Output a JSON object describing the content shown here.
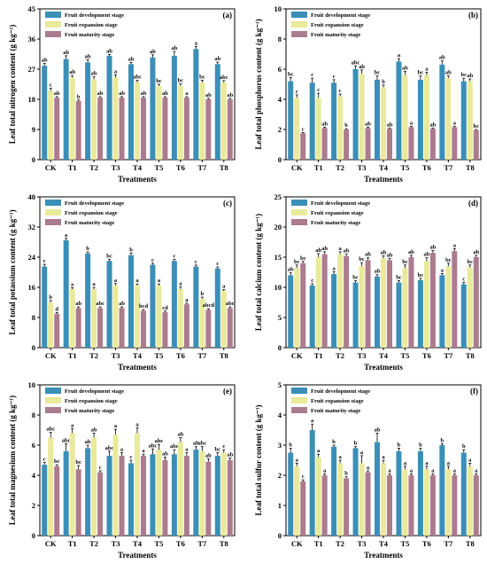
{
  "figure": {
    "treatments_title": "Treatments",
    "legend_labels": [
      "Fruit development stage",
      "Fruit expansion stage",
      "Fruit maturity stage"
    ],
    "colors": {
      "development": "#3a8fb7",
      "expansion": "#e9ea9a",
      "maturity": "#ad7b8e"
    }
  },
  "chart_data": [
    {
      "panel": "(a)",
      "type": "bar",
      "ylabel": "Leaf total nitrogen content (g kg⁻¹)",
      "xlabel": "Treatments",
      "ylim": [
        0,
        45
      ],
      "yticks": [
        0,
        9,
        18,
        27,
        36,
        45
      ],
      "categories": [
        "CK",
        "T1",
        "T2",
        "T3",
        "T4",
        "T5",
        "T6",
        "T7",
        "T8"
      ],
      "series": [
        {
          "name": "Fruit development stage",
          "values": [
            28,
            30,
            29,
            31,
            28.5,
            30.5,
            31,
            33,
            28.5
          ],
          "errors": [
            0.7,
            1.0,
            0.8,
            0.4,
            0.5,
            0.8,
            1.3,
            0.8,
            0.6
          ],
          "labels": [
            "ab",
            "ab",
            "ab",
            "ab",
            "ab",
            "ab",
            "ab",
            "a",
            "ab"
          ]
        },
        {
          "name": "Fruit expansion stage",
          "values": [
            20.5,
            24.5,
            24,
            24.5,
            23,
            22,
            22,
            23,
            23
          ],
          "errors": [
            0.8,
            0.6,
            0.7,
            0.8,
            0.7,
            0.5,
            0.6,
            0.7,
            0.6
          ],
          "labels": [
            "c",
            "ab",
            "ab",
            "a",
            "abc",
            "bc",
            "bc",
            "bc",
            "abc"
          ]
        },
        {
          "name": "Fruit maturity stage",
          "values": [
            18.5,
            17.5,
            18.5,
            18.5,
            18.5,
            18.5,
            18.5,
            18,
            18
          ],
          "errors": [
            0.3,
            0.3,
            0.3,
            0.3,
            0.3,
            0.3,
            0.3,
            0.3,
            0.3
          ],
          "labels": [
            "ab",
            "b",
            "ab",
            "ab",
            "ab",
            "ab",
            "a",
            "ab",
            "ab"
          ]
        }
      ]
    },
    {
      "panel": "(b)",
      "type": "bar",
      "ylabel": "Leaf total phosphorus content (g kg⁻¹)",
      "xlabel": "Treatments",
      "ylim": [
        0,
        10
      ],
      "yticks": [
        0,
        2,
        4,
        6,
        8,
        10
      ],
      "categories": [
        "CK",
        "T1",
        "T2",
        "T3",
        "T4",
        "T5",
        "T6",
        "T7",
        "T8"
      ],
      "series": [
        {
          "name": "Fruit development stage",
          "values": [
            5.2,
            5.1,
            5.1,
            6.0,
            5.3,
            6.5,
            5.3,
            6.3,
            5.2
          ],
          "errors": [
            0.25,
            0.3,
            0.2,
            0.2,
            0.25,
            0.2,
            0.25,
            0.25,
            0.2
          ],
          "labels": [
            "bc",
            "c",
            "c",
            "abc",
            "bc",
            "a",
            "bc",
            "ab",
            "bc"
          ]
        },
        {
          "name": "Fruit expansion stage",
          "values": [
            4.1,
            4.1,
            4.2,
            5.7,
            4.8,
            5.6,
            5.6,
            5.4,
            5.2
          ],
          "errors": [
            0.2,
            0.3,
            0.15,
            0.25,
            0.15,
            0.25,
            0.2,
            0.15,
            0.15
          ],
          "labels": [
            "c",
            "c",
            "c",
            "ab",
            "b",
            "ab",
            "a",
            "ab",
            "ab"
          ]
        },
        {
          "name": "Fruit maturity stage",
          "values": [
            1.75,
            2.1,
            2.0,
            2.1,
            2.05,
            2.15,
            2.05,
            2.15,
            1.95
          ],
          "errors": [
            0.05,
            0.05,
            0.05,
            0.05,
            0.05,
            0.05,
            0.05,
            0.05,
            0.05
          ],
          "labels": [
            "c",
            "ab",
            "b",
            "ab",
            "ab",
            "a",
            "ab",
            "a",
            "bc"
          ]
        }
      ]
    },
    {
      "panel": "(c)",
      "type": "bar",
      "ylabel": "Leaf total potassium content (g kg⁻¹)",
      "xlabel": "Treatments",
      "ylim": [
        0,
        40
      ],
      "yticks": [
        0,
        8,
        16,
        24,
        32,
        40
      ],
      "categories": [
        "CK",
        "T1",
        "T2",
        "T3",
        "T4",
        "T5",
        "T6",
        "T7",
        "T8"
      ],
      "series": [
        {
          "name": "Fruit development stage",
          "values": [
            21.5,
            28.5,
            25,
            23,
            24.5,
            22,
            23,
            21.5,
            21
          ],
          "errors": [
            0.6,
            0.5,
            0.4,
            0.4,
            0.6,
            0.4,
            0.4,
            0.4,
            0.4
          ],
          "labels": [
            "c",
            "a",
            "b",
            "bc",
            "b",
            "c",
            "c",
            "c",
            "c"
          ]
        },
        {
          "name": "Fruit expansion stage",
          "values": [
            12,
            15.5,
            15.5,
            16.5,
            16.5,
            16.5,
            15.5,
            13,
            15
          ],
          "errors": [
            0.5,
            0.4,
            0.5,
            0.5,
            0.4,
            0.4,
            0.6,
            0.4,
            0.4
          ],
          "labels": [
            "b",
            "a",
            "a",
            "a",
            "a",
            "a",
            "a",
            "b",
            "a"
          ]
        },
        {
          "name": "Fruit maturity stage",
          "values": [
            9,
            10.5,
            10.5,
            10.5,
            9.8,
            9.4,
            11.5,
            10,
            10.5
          ],
          "errors": [
            0.3,
            0.3,
            0.3,
            0.3,
            0.3,
            0.3,
            0.3,
            0.3,
            0.3
          ],
          "labels": [
            "d",
            "ab",
            "abc",
            "ab",
            "bcd",
            "cd",
            "a",
            "abcd",
            "abc"
          ]
        }
      ]
    },
    {
      "panel": "(d)",
      "type": "bar",
      "ylabel": "Leaf total calcium content (g kg⁻¹)",
      "xlabel": "Treatments",
      "ylim": [
        0,
        25
      ],
      "yticks": [
        0,
        5,
        10,
        15,
        20,
        25
      ],
      "categories": [
        "CK",
        "T1",
        "T2",
        "T3",
        "T4",
        "T5",
        "T6",
        "T7",
        "T8"
      ],
      "series": [
        {
          "name": "Fruit development stage",
          "values": [
            12,
            10.3,
            12.2,
            10.8,
            11.8,
            10.8,
            11.2,
            12,
            10.5
          ],
          "errors": [
            0.4,
            0.3,
            0.4,
            0.3,
            0.3,
            0.3,
            0.3,
            0.3,
            0.3
          ],
          "labels": [
            "ab",
            "c",
            "a",
            "bc",
            "ab",
            "bc",
            "bc",
            "a",
            "c"
          ]
        },
        {
          "name": "Fruit expansion stage",
          "values": [
            13.2,
            15,
            15.5,
            13.5,
            14.8,
            13.2,
            14.3,
            13.5,
            13.3
          ],
          "errors": [
            0.5,
            0.6,
            0.4,
            0.6,
            0.4,
            0.5,
            0.6,
            0.5,
            0.4
          ],
          "labels": [
            "bc",
            "ab",
            "a",
            "bc",
            "ab",
            "bc",
            "ab",
            "bc",
            "bc"
          ]
        },
        {
          "name": "Fruit maturity stage",
          "values": [
            14,
            15.5,
            15.2,
            14.5,
            14.5,
            15,
            15.7,
            16,
            15
          ],
          "errors": [
            0.3,
            0.4,
            0.3,
            0.4,
            0.3,
            0.3,
            0.4,
            0.4,
            0.3
          ],
          "labels": [
            "bc",
            "ab",
            "ab",
            "ab",
            "ab",
            "ab",
            "ab",
            "a",
            "ab"
          ]
        }
      ]
    },
    {
      "panel": "(e)",
      "type": "bar",
      "ylabel": "Leaf total magnesium content (g kg⁻¹)",
      "xlabel": "Treatments",
      "ylim": [
        0,
        10
      ],
      "yticks": [
        0,
        2,
        4,
        6,
        8,
        10
      ],
      "categories": [
        "CK",
        "T1",
        "T2",
        "T3",
        "T4",
        "T5",
        "T6",
        "T7",
        "T8"
      ],
      "series": [
        {
          "name": "Fruit development stage",
          "values": [
            4.7,
            5.6,
            5.8,
            5.3,
            4.8,
            5.4,
            5.4,
            5.7,
            5.3
          ],
          "errors": [
            0.15,
            0.5,
            0.2,
            0.3,
            0.2,
            0.35,
            0.3,
            0.2,
            0.2
          ],
          "labels": [
            "c",
            "abc",
            "ab",
            "abc",
            "c",
            "abc",
            "abc",
            "ab",
            "bc"
          ]
        },
        {
          "name": "Fruit expansion stage",
          "values": [
            6.5,
            6.8,
            6.5,
            6.7,
            6.8,
            5.7,
            6.2,
            5.6,
            5.5
          ],
          "errors": [
            0.35,
            0.3,
            0.3,
            0.35,
            0.35,
            0.35,
            0.3,
            0.3,
            0.2
          ],
          "labels": [
            "abc",
            "a",
            "ab",
            "a",
            "a",
            "abc",
            "ab",
            "abc",
            "c"
          ]
        },
        {
          "name": "Fruit maturity stage",
          "values": [
            4.6,
            4.4,
            4.2,
            5.3,
            5.3,
            5.0,
            5.3,
            4.9,
            5.0
          ],
          "errors": [
            0.1,
            0.25,
            0.1,
            0.2,
            0.1,
            0.2,
            0.2,
            0.2,
            0.15
          ],
          "labels": [
            "bc",
            "bc",
            "c",
            "a",
            "a",
            "ab",
            "a",
            "ab",
            "ab"
          ]
        }
      ]
    },
    {
      "panel": "(f)",
      "type": "bar",
      "ylabel": "Leaf total sulfur content (g kg⁻¹)",
      "xlabel": "Treatments",
      "ylim": [
        0,
        5
      ],
      "yticks": [
        0,
        1,
        2,
        3,
        4,
        5
      ],
      "categories": [
        "CK",
        "T1",
        "T2",
        "T3",
        "T4",
        "T5",
        "T6",
        "T7",
        "T8"
      ],
      "series": [
        {
          "name": "Fruit development stage",
          "values": [
            2.75,
            3.5,
            2.95,
            2.9,
            3.1,
            2.8,
            2.8,
            3.0,
            2.75
          ],
          "errors": [
            0.15,
            0.2,
            0.05,
            0.05,
            0.3,
            0.1,
            0.1,
            0.05,
            0.1
          ],
          "labels": [
            "b",
            "a",
            "b",
            "b",
            "ab",
            "b",
            "b",
            "b",
            "b"
          ]
        },
        {
          "name": "Fruit expansion stage",
          "values": [
            2.3,
            2.6,
            2.4,
            2.4,
            2.4,
            2.2,
            2.2,
            2.2,
            2.3
          ],
          "errors": [
            0.1,
            0.1,
            0.1,
            0.25,
            0.1,
            0.1,
            0.1,
            0.1,
            0.1
          ],
          "labels": [
            "a",
            "a",
            "a",
            "a",
            "a",
            "a",
            "a",
            "a",
            "a"
          ]
        },
        {
          "name": "Fruit maturity stage",
          "values": [
            1.8,
            2.0,
            1.9,
            2.1,
            2.0,
            2.0,
            2.0,
            2.0,
            2.0
          ],
          "errors": [
            0.05,
            0.05,
            0.05,
            0.05,
            0.05,
            0.05,
            0.05,
            0.05,
            0.05
          ],
          "labels": [
            "c",
            "a",
            "b",
            "a",
            "a",
            "a",
            "a",
            "a",
            "a"
          ]
        }
      ]
    }
  ]
}
